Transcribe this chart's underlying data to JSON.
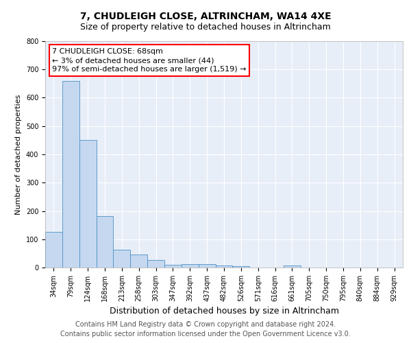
{
  "title": "7, CHUDLEIGH CLOSE, ALTRINCHAM, WA14 4XE",
  "subtitle": "Size of property relative to detached houses in Altrincham",
  "xlabel": "Distribution of detached houses by size in Altrincham",
  "ylabel": "Number of detached properties",
  "categories": [
    "34sqm",
    "79sqm",
    "124sqm",
    "168sqm",
    "213sqm",
    "258sqm",
    "303sqm",
    "347sqm",
    "392sqm",
    "437sqm",
    "482sqm",
    "526sqm",
    "571sqm",
    "616sqm",
    "661sqm",
    "705sqm",
    "750sqm",
    "795sqm",
    "840sqm",
    "884sqm",
    "929sqm"
  ],
  "values": [
    127,
    660,
    450,
    183,
    62,
    47,
    27,
    10,
    13,
    13,
    7,
    6,
    0,
    0,
    7,
    0,
    0,
    0,
    0,
    0,
    0
  ],
  "bar_color": "#c5d8f0",
  "bar_edge_color": "#4a90c4",
  "background_color": "#e8eef8",
  "ylim": [
    0,
    800
  ],
  "yticks": [
    0,
    100,
    200,
    300,
    400,
    500,
    600,
    700,
    800
  ],
  "annotation_text": "7 CHUDLEIGH CLOSE: 68sqm\n← 3% of detached houses are smaller (44)\n97% of semi-detached houses are larger (1,519) →",
  "annotation_box_color": "white",
  "annotation_box_edge_color": "red",
  "footer_text": "Contains HM Land Registry data © Crown copyright and database right 2024.\nContains public sector information licensed under the Open Government Licence v3.0.",
  "title_fontsize": 10,
  "subtitle_fontsize": 9,
  "xlabel_fontsize": 9,
  "ylabel_fontsize": 8,
  "tick_fontsize": 7,
  "annotation_fontsize": 8,
  "footer_fontsize": 7
}
